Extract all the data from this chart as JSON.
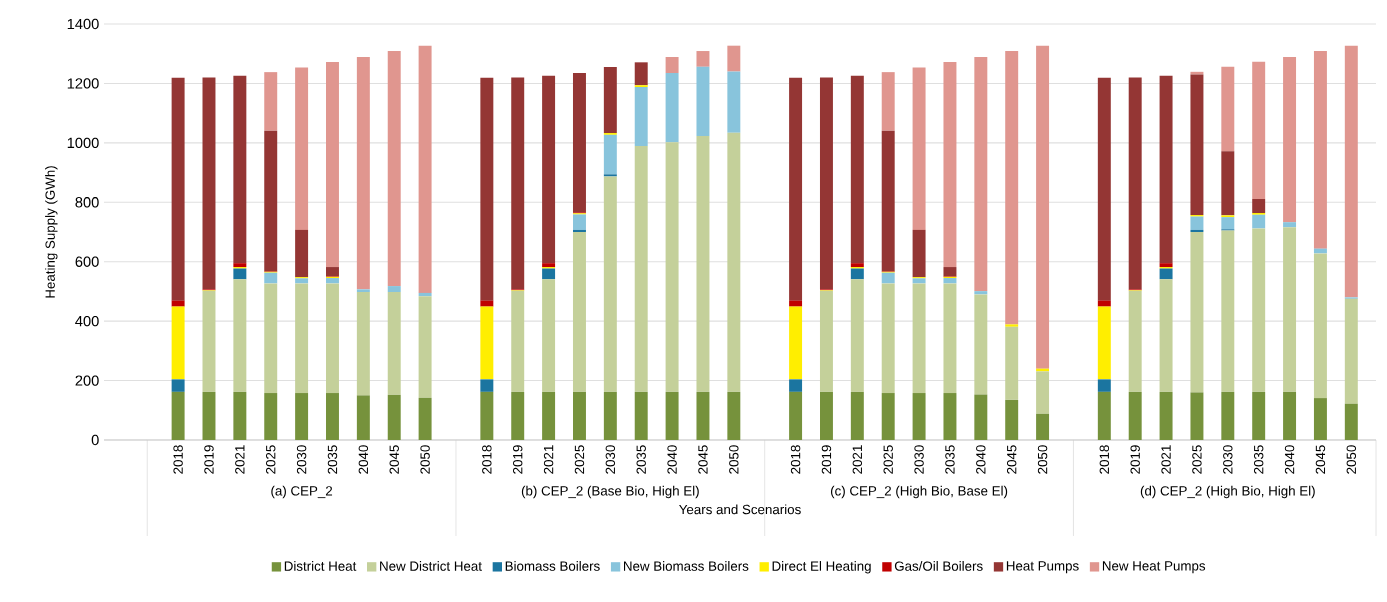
{
  "chart_data": {
    "type": "bar",
    "stacked": true,
    "ylabel": "Heating Supply (GWh)",
    "xlabel": "Years and Scenarios",
    "categories": [
      "2018",
      "2019",
      "2021",
      "2025",
      "2030",
      "2035",
      "2040",
      "2045",
      "2050",
      null,
      "2018",
      "2019",
      "2021",
      "2025",
      "2030",
      "2035",
      "2040",
      "2045",
      "2050",
      null,
      "2018",
      "2019",
      "2021",
      "2025",
      "2030",
      "2035",
      "2040",
      "2045",
      "2050",
      null,
      "2018",
      "2019",
      "2021",
      "2025",
      "2030",
      "2035",
      "2040",
      "2045",
      "2050"
    ],
    "annotations": [
      "(a) CEP_2",
      "(b) CEP_2 (Base Bio, High El)",
      "(c) CEP_2 (High Bio, Base El)",
      "(d) CEP_2 (High Bio, High El)"
    ],
    "ylim": [
      0,
      1400
    ],
    "yticks": [
      0,
      200,
      400,
      600,
      800,
      1000,
      1200,
      1400
    ],
    "grid": "y",
    "legend": "bottom",
    "series": [
      {
        "name": "District Heat",
        "color": "#76923c",
        "values": [
          162,
          162,
          162,
          158,
          158,
          158,
          150,
          152,
          142,
          null,
          162,
          162,
          162,
          162,
          162,
          162,
          162,
          162,
          162,
          null,
          162,
          162,
          162,
          158,
          158,
          158,
          153,
          135,
          88,
          null,
          162,
          162,
          162,
          160,
          162,
          162,
          162,
          141,
          122
        ]
      },
      {
        "name": "New District Heat",
        "color": "#c4d09a",
        "values": [
          0,
          340,
          379,
          369,
          369,
          369,
          348,
          346,
          342,
          null,
          0,
          340,
          379,
          538,
          725,
          827,
          840,
          861,
          872,
          null,
          0,
          340,
          379,
          369,
          369,
          369,
          337,
          246,
          143,
          null,
          0,
          340,
          379,
          540,
          543,
          550,
          554,
          487,
          353
        ]
      },
      {
        "name": "Biomass Boilers",
        "color": "#1b75a0",
        "values": [
          42,
          0,
          36,
          0,
          0,
          0,
          0,
          0,
          0,
          null,
          42,
          0,
          36,
          7,
          7,
          0,
          0,
          0,
          0,
          null,
          42,
          0,
          36,
          0,
          0,
          0,
          0,
          0,
          0,
          null,
          42,
          0,
          36,
          7,
          4,
          0,
          0,
          0,
          0
        ]
      },
      {
        "name": "New Biomass Boilers",
        "color": "#88c4dc",
        "values": [
          0,
          0,
          0,
          36,
          17,
          18,
          9,
          20,
          11,
          null,
          0,
          0,
          0,
          52,
          133,
          199,
          233,
          233,
          206,
          null,
          0,
          0,
          0,
          36,
          17,
          18,
          11,
          0,
          0,
          null,
          0,
          0,
          0,
          45,
          41,
          46,
          17,
          16,
          5
        ]
      },
      {
        "name": "Direct El Heating",
        "color": "#ffee00",
        "values": [
          245,
          2,
          5,
          3,
          4,
          4,
          0,
          0,
          0,
          null,
          245,
          2,
          5,
          4,
          6,
          6,
          0,
          0,
          0,
          null,
          245,
          2,
          5,
          3,
          4,
          4,
          0,
          8,
          9,
          null,
          245,
          2,
          5,
          5,
          6,
          6,
          0,
          0,
          0
        ]
      },
      {
        "name": "Gas/Oil Boilers",
        "color": "#c00000",
        "values": [
          20,
          3,
          13,
          2,
          0,
          2,
          0,
          0,
          0,
          null,
          20,
          3,
          13,
          3,
          0,
          0,
          0,
          0,
          0,
          null,
          20,
          3,
          13,
          2,
          0,
          2,
          0,
          0,
          0,
          null,
          20,
          3,
          13,
          0,
          0,
          0,
          0,
          0,
          0
        ]
      },
      {
        "name": "Heat Pumps",
        "color": "#943634",
        "values": [
          750,
          713,
          631,
          473,
          159,
          31,
          0,
          0,
          0,
          null,
          750,
          713,
          631,
          469,
          222,
          77,
          0,
          0,
          0,
          null,
          750,
          713,
          631,
          473,
          159,
          31,
          0,
          0,
          0,
          null,
          750,
          713,
          631,
          473,
          216,
          47,
          0,
          0,
          0
        ]
      },
      {
        "name": "New Heat Pumps",
        "color": "#e0968f",
        "values": [
          0,
          0,
          0,
          197,
          547,
          690,
          782,
          791,
          832,
          null,
          0,
          0,
          0,
          0,
          0,
          0,
          54,
          53,
          87,
          null,
          0,
          0,
          0,
          197,
          547,
          690,
          788,
          920,
          1087,
          null,
          0,
          0,
          0,
          9,
          284,
          462,
          556,
          665,
          847
        ]
      }
    ]
  }
}
